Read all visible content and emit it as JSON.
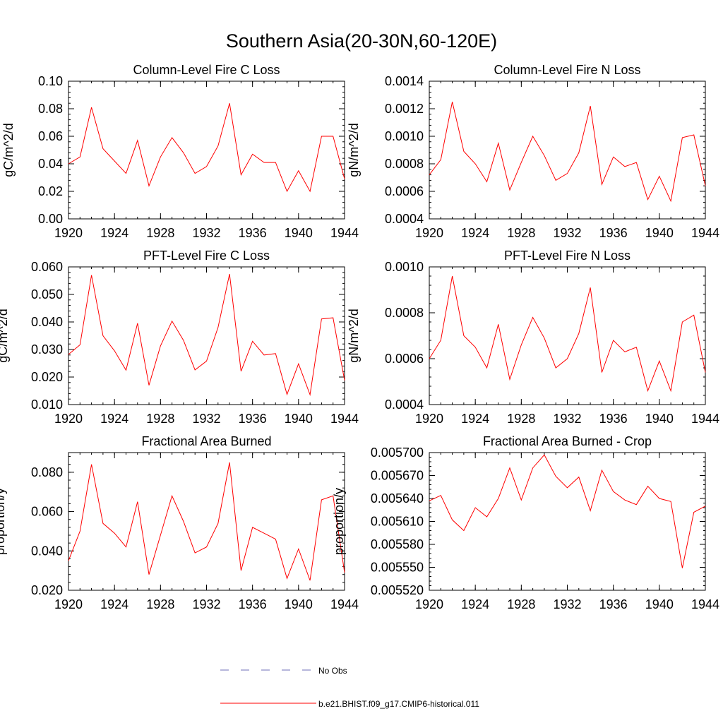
{
  "page": {
    "title": "Southern Asia(20-30N,60-120E)"
  },
  "legend": {
    "items": [
      {
        "label": "No Obs",
        "color": "#6f6fb8",
        "style": "dashed"
      },
      {
        "label": "b.e21.BHIST.f09_g17.CMIP6-historical.011",
        "color": "#ff0000",
        "style": "solid"
      }
    ]
  },
  "chart_data": [
    {
      "type": "line",
      "title": "Column-Level Fire C Loss",
      "ylabel": "gC/m^2/d",
      "xlim": [
        1920,
        1944
      ],
      "ylim": [
        0.0,
        0.1
      ],
      "xticks": [
        "1920",
        "1924",
        "1928",
        "1932",
        "1936",
        "1940",
        "1944"
      ],
      "yticks": [
        0.0,
        0.02,
        0.04,
        0.06,
        0.08,
        0.1
      ],
      "ytick_labels": [
        "0.00",
        "0.02",
        "0.04",
        "0.06",
        "0.08",
        "0.10"
      ],
      "x": [
        1920,
        1921,
        1922,
        1923,
        1924,
        1925,
        1926,
        1927,
        1928,
        1929,
        1930,
        1931,
        1932,
        1933,
        1934,
        1935,
        1936,
        1937,
        1938,
        1939,
        1940,
        1941,
        1942,
        1943,
        1944
      ],
      "series": [
        {
          "name": "b.e21.BHIST.f09_g17.CMIP6-historical.011",
          "color": "#ff0000",
          "values": [
            0.04,
            0.045,
            0.081,
            0.051,
            0.042,
            0.033,
            0.057,
            0.024,
            0.045,
            0.059,
            0.048,
            0.033,
            0.038,
            0.053,
            0.084,
            0.032,
            0.047,
            0.041,
            0.041,
            0.02,
            0.035,
            0.02,
            0.06,
            0.06,
            0.029
          ]
        }
      ]
    },
    {
      "type": "line",
      "title": "Column-Level Fire N Loss",
      "ylabel": "gN/m^2/d",
      "xlim": [
        1920,
        1944
      ],
      "ylim": [
        0.0004,
        0.0014
      ],
      "xticks": [
        "1920",
        "1924",
        "1928",
        "1932",
        "1936",
        "1940",
        "1944"
      ],
      "yticks": [
        0.0004,
        0.0006,
        0.0008,
        0.001,
        0.0012,
        0.0014
      ],
      "ytick_labels": [
        "0.0004",
        "0.0006",
        "0.0008",
        "0.0010",
        "0.0012",
        "0.0014"
      ],
      "x": [
        1920,
        1921,
        1922,
        1923,
        1924,
        1925,
        1926,
        1927,
        1928,
        1929,
        1930,
        1931,
        1932,
        1933,
        1934,
        1935,
        1936,
        1937,
        1938,
        1939,
        1940,
        1941,
        1942,
        1943,
        1944
      ],
      "series": [
        {
          "name": "b.e21.BHIST.f09_g17.CMIP6-historical.011",
          "color": "#ff0000",
          "values": [
            0.00072,
            0.00083,
            0.00125,
            0.00089,
            0.0008,
            0.00067,
            0.00095,
            0.00061,
            0.00081,
            0.001,
            0.00086,
            0.00068,
            0.00073,
            0.00088,
            0.00122,
            0.00065,
            0.00085,
            0.00078,
            0.00081,
            0.00054,
            0.00071,
            0.00053,
            0.00099,
            0.00101,
            0.00064
          ]
        }
      ]
    },
    {
      "type": "line",
      "title": "PFT-Level Fire C Loss",
      "ylabel": "gC/m^2/d",
      "xlim": [
        1920,
        1944
      ],
      "ylim": [
        0.01,
        0.06
      ],
      "xticks": [
        "1920",
        "1924",
        "1928",
        "1932",
        "1936",
        "1940",
        "1944"
      ],
      "yticks": [
        0.01,
        0.02,
        0.03,
        0.04,
        0.05,
        0.06
      ],
      "ytick_labels": [
        "0.010",
        "0.020",
        "0.030",
        "0.040",
        "0.050",
        "0.060"
      ],
      "x": [
        1920,
        1921,
        1922,
        1923,
        1924,
        1925,
        1926,
        1927,
        1928,
        1929,
        1930,
        1931,
        1932,
        1933,
        1934,
        1935,
        1936,
        1937,
        1938,
        1939,
        1940,
        1941,
        1942,
        1943,
        1944
      ],
      "series": [
        {
          "name": "b.e21.BHIST.f09_g17.CMIP6-historical.011",
          "color": "#ff0000",
          "values": [
            0.0282,
            0.0317,
            0.057,
            0.035,
            0.0295,
            0.0225,
            0.0395,
            0.017,
            0.0313,
            0.0403,
            0.0333,
            0.0226,
            0.0258,
            0.038,
            0.0574,
            0.0221,
            0.033,
            0.028,
            0.0285,
            0.0137,
            0.0248,
            0.0136,
            0.0411,
            0.0415,
            0.0188
          ]
        }
      ]
    },
    {
      "type": "line",
      "title": "PFT-Level Fire N Loss",
      "ylabel": "gN/m^2/d",
      "xlim": [
        1920,
        1944
      ],
      "ylim": [
        0.0004,
        0.001
      ],
      "xticks": [
        "1920",
        "1924",
        "1928",
        "1932",
        "1936",
        "1940",
        "1944"
      ],
      "yticks": [
        0.0004,
        0.0006,
        0.0008,
        0.001
      ],
      "ytick_labels": [
        "0.0004",
        "0.0006",
        "0.0008",
        "0.0010"
      ],
      "x": [
        1920,
        1921,
        1922,
        1923,
        1924,
        1925,
        1926,
        1927,
        1928,
        1929,
        1930,
        1931,
        1932,
        1933,
        1934,
        1935,
        1936,
        1937,
        1938,
        1939,
        1940,
        1941,
        1942,
        1943,
        1944
      ],
      "series": [
        {
          "name": "b.e21.BHIST.f09_g17.CMIP6-historical.011",
          "color": "#ff0000",
          "values": [
            0.0006,
            0.00068,
            0.00096,
            0.0007,
            0.00065,
            0.00056,
            0.00075,
            0.00051,
            0.00066,
            0.00078,
            0.00069,
            0.00056,
            0.0006,
            0.00071,
            0.00091,
            0.00054,
            0.00068,
            0.00063,
            0.00065,
            0.00046,
            0.00059,
            0.00046,
            0.00076,
            0.00079,
            0.00054
          ]
        }
      ]
    },
    {
      "type": "line",
      "title": "Fractional Area Burned",
      "ylabel": "proportion/y",
      "xlim": [
        1920,
        1944
      ],
      "ylim": [
        0.02,
        0.09
      ],
      "xticks": [
        "1920",
        "1924",
        "1928",
        "1932",
        "1936",
        "1940",
        "1944"
      ],
      "yticks": [
        0.02,
        0.04,
        0.06,
        0.08
      ],
      "ytick_labels": [
        "0.020",
        "0.040",
        "0.060",
        "0.080"
      ],
      "x": [
        1920,
        1921,
        1922,
        1923,
        1924,
        1925,
        1926,
        1927,
        1928,
        1929,
        1930,
        1931,
        1932,
        1933,
        1934,
        1935,
        1936,
        1937,
        1938,
        1939,
        1940,
        1941,
        1942,
        1943,
        1944
      ],
      "series": [
        {
          "name": "b.e21.BHIST.f09_g17.CMIP6-historical.011",
          "color": "#ff0000",
          "values": [
            0.035,
            0.05,
            0.084,
            0.054,
            0.049,
            0.042,
            0.065,
            0.028,
            0.048,
            0.068,
            0.055,
            0.039,
            0.042,
            0.054,
            0.085,
            0.03,
            0.052,
            0.049,
            0.046,
            0.026,
            0.041,
            0.025,
            0.066,
            0.068,
            0.029
          ]
        }
      ]
    },
    {
      "type": "line",
      "title": "Fractional Area Burned - Crop",
      "ylabel": "proportion/y",
      "xlim": [
        1920,
        1944
      ],
      "ylim": [
        0.00552,
        0.0057
      ],
      "xticks": [
        "1920",
        "1924",
        "1928",
        "1932",
        "1936",
        "1940",
        "1944"
      ],
      "yticks": [
        0.00552,
        0.00555,
        0.00558,
        0.00561,
        0.00564,
        0.00567,
        0.0057
      ],
      "ytick_labels": [
        "0.005520",
        "0.005550",
        "0.005580",
        "0.005610",
        "0.005640",
        "0.005670",
        "0.005700"
      ],
      "x": [
        1920,
        1921,
        1922,
        1923,
        1924,
        1925,
        1926,
        1927,
        1928,
        1929,
        1930,
        1931,
        1932,
        1933,
        1934,
        1935,
        1936,
        1937,
        1938,
        1939,
        1940,
        1941,
        1942,
        1943,
        1944
      ],
      "series": [
        {
          "name": "b.e21.BHIST.f09_g17.CMIP6-historical.011",
          "color": "#ff0000",
          "values": [
            0.005637,
            0.005644,
            0.005612,
            0.005598,
            0.005628,
            0.005616,
            0.00564,
            0.00568,
            0.005638,
            0.00568,
            0.005697,
            0.005669,
            0.005654,
            0.005668,
            0.005624,
            0.005677,
            0.005649,
            0.005638,
            0.005632,
            0.005656,
            0.00564,
            0.005636,
            0.005549,
            0.005622,
            0.00563
          ]
        }
      ]
    }
  ]
}
